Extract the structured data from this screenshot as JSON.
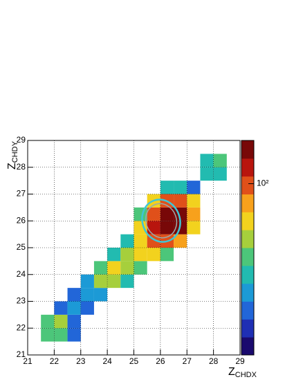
{
  "chart_data": {
    "type": "heatmap2d",
    "x_label": {
      "base": "Z",
      "sub": "CHDX"
    },
    "y_label": {
      "base": "Z",
      "sub": "CHDY"
    },
    "xbins": [
      21,
      21.5,
      22,
      22.5,
      23,
      23.5,
      24,
      24.5,
      25,
      25.5,
      26,
      26.5,
      27,
      27.5,
      28,
      28.5,
      29
    ],
    "ybins": [
      21,
      21.5,
      22,
      22.5,
      23,
      23.5,
      24,
      24.5,
      25,
      25.5,
      26,
      26.5,
      27,
      27.5,
      28,
      28.5,
      29
    ],
    "z": [
      [
        0,
        0,
        0,
        0,
        0,
        0,
        0,
        0,
        0,
        0,
        0,
        0,
        0,
        0,
        0,
        0
      ],
      [
        0,
        12,
        15,
        3,
        0,
        0,
        0,
        0,
        0,
        0,
        0,
        0,
        0,
        0,
        0,
        0
      ],
      [
        0,
        15,
        18,
        4,
        0,
        0,
        0,
        0,
        0,
        0,
        0,
        0,
        0,
        0,
        0,
        0
      ],
      [
        0,
        0,
        3,
        5,
        3,
        0,
        0,
        0,
        0,
        0,
        0,
        0,
        0,
        0,
        0,
        0
      ],
      [
        0,
        0,
        0,
        4,
        6,
        5,
        0,
        0,
        0,
        0,
        0,
        0,
        0,
        0,
        0,
        0
      ],
      [
        0,
        0,
        0,
        0,
        5,
        20,
        25,
        8,
        0,
        0,
        0,
        0,
        0,
        0,
        0,
        0
      ],
      [
        0,
        0,
        0,
        0,
        0,
        15,
        35,
        25,
        15,
        0,
        0,
        0,
        0,
        0,
        0,
        0
      ],
      [
        0,
        0,
        0,
        0,
        0,
        0,
        10,
        20,
        30,
        35,
        15,
        0,
        0,
        0,
        0,
        0
      ],
      [
        0,
        0,
        0,
        0,
        0,
        0,
        0,
        8,
        40,
        90,
        110,
        50,
        0,
        0,
        0,
        0
      ],
      [
        0,
        0,
        0,
        0,
        0,
        0,
        0,
        0,
        30,
        150,
        320,
        250,
        40,
        0,
        0,
        0
      ],
      [
        0,
        0,
        0,
        0,
        0,
        0,
        0,
        0,
        15,
        120,
        320,
        300,
        60,
        0,
        0,
        0
      ],
      [
        0,
        0,
        0,
        0,
        0,
        0,
        0,
        0,
        0,
        40,
        90,
        100,
        30,
        0,
        0,
        0
      ],
      [
        0,
        0,
        0,
        0,
        0,
        0,
        0,
        0,
        0,
        0,
        8,
        10,
        3,
        0,
        0,
        0
      ],
      [
        0,
        0,
        0,
        0,
        0,
        0,
        0,
        0,
        0,
        0,
        0,
        0,
        0,
        8,
        10,
        0
      ],
      [
        0,
        0,
        0,
        0,
        0,
        0,
        0,
        0,
        0,
        0,
        0,
        0,
        0,
        10,
        12,
        0
      ],
      [
        0,
        0,
        0,
        0,
        0,
        0,
        0,
        0,
        0,
        0,
        0,
        0,
        0,
        0,
        0,
        0
      ]
    ],
    "xlim": [
      21,
      29
    ],
    "ylim": [
      21,
      29
    ],
    "xticks": [
      21,
      22,
      23,
      24,
      25,
      26,
      27,
      28,
      29
    ],
    "yticks": [
      21,
      22,
      23,
      24,
      25,
      26,
      27,
      28,
      29
    ],
    "grid": true,
    "zlim": [
      1,
      320
    ],
    "zlog": true,
    "zticks": [
      {
        "value": 100,
        "label": "10²"
      }
    ],
    "palette": [
      "#1a0a6e",
      "#1f2fb4",
      "#2266d8",
      "#1c9ad6",
      "#22bbb0",
      "#4cc67a",
      "#a6cf3c",
      "#f2d21e",
      "#f7a11c",
      "#e0501a",
      "#b8150e",
      "#780808"
    ]
  }
}
